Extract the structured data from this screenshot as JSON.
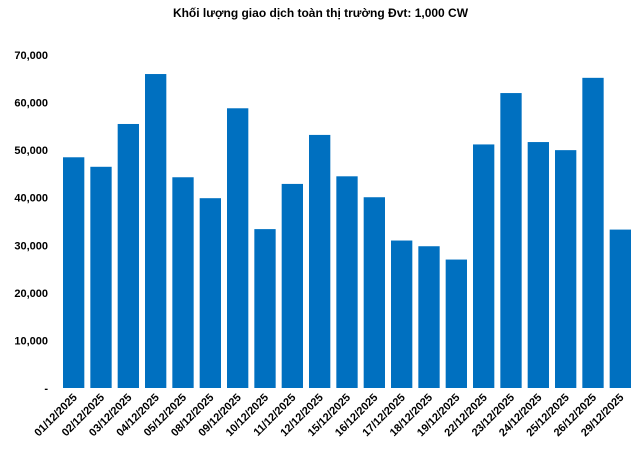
{
  "chart_data": {
    "type": "bar",
    "title": "Khối lượng giao dịch toàn thị trường Đvt: 1,000 CW",
    "xlabel": "",
    "ylabel": "",
    "categories": [
      "01/12/2025",
      "02/12/2025",
      "03/12/2025",
      "04/12/2025",
      "05/12/2025",
      "08/12/2025",
      "09/12/2025",
      "10/12/2025",
      "11/12/2025",
      "12/12/2025",
      "15/12/2025",
      "16/12/2025",
      "17/12/2025",
      "18/12/2025",
      "19/12/2025",
      "22/12/2025",
      "23/12/2025",
      "24/12/2025",
      "25/12/2025",
      "26/12/2025",
      "29/12/2025"
    ],
    "values": [
      48500,
      46500,
      55500,
      66000,
      44300,
      39900,
      58800,
      33400,
      42900,
      53200,
      44500,
      40100,
      31000,
      29800,
      27000,
      51200,
      62000,
      51700,
      50000,
      65200,
      33300
    ],
    "ylim": [
      0,
      70000
    ],
    "yticks": [
      "-",
      "10,000",
      "20,000",
      "30,000",
      "40,000",
      "50,000",
      "60,000",
      "70,000"
    ],
    "grid": false,
    "legend": "none",
    "bar_color": "#0070C0"
  }
}
